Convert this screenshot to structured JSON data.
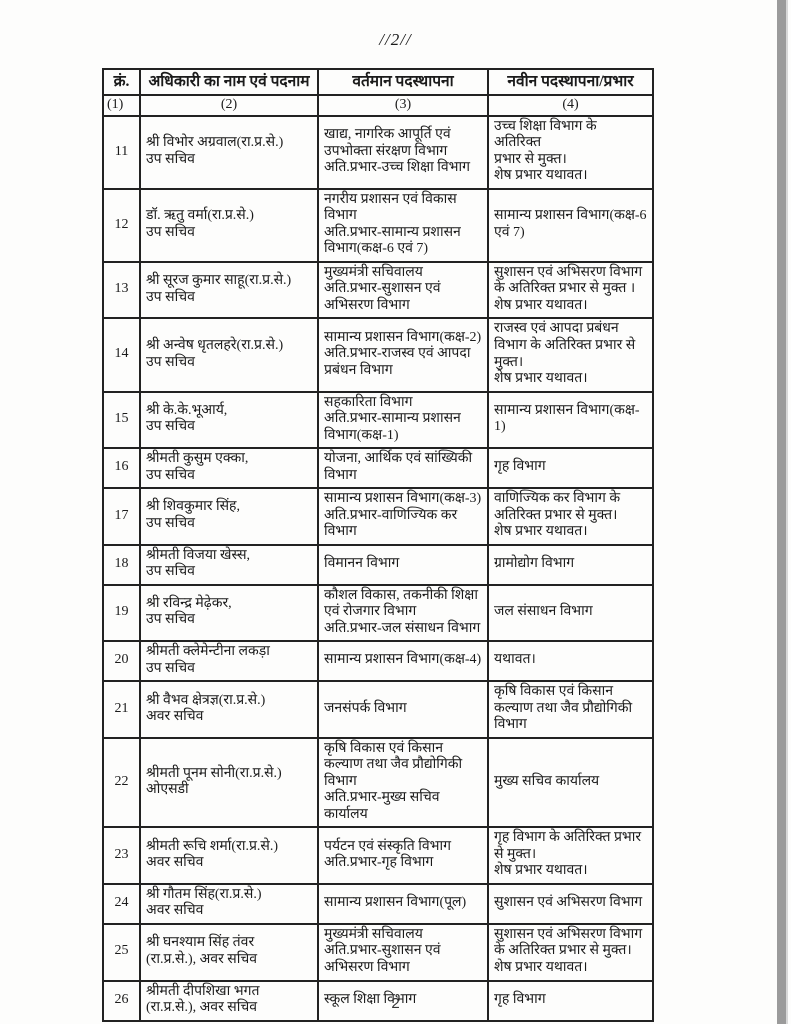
{
  "page": {
    "header_mark": "//2//",
    "page_number": "2"
  },
  "colors": {
    "page_bg": "#fdfdfc",
    "ink": "#1b1b1b",
    "table_border": "#222222",
    "scan_edge": "#9b9b9b"
  },
  "table": {
    "columns": [
      {
        "label": "क्रं.",
        "index": "(1)"
      },
      {
        "label": "अधिकारी का नाम एवं पदनाम",
        "index": "(2)"
      },
      {
        "label": "वर्तमान पदस्थापना",
        "index": "(3)"
      },
      {
        "label": "नवीन पदस्थापना/प्रभार",
        "index": "(4)"
      }
    ],
    "rows": [
      {
        "sno": "11",
        "name": "श्री विभोर अग्रवाल(रा.प्र.से.)\nउप सचिव",
        "current": "खाद्य, नागरिक आपूर्ति एवं\nउपभोक्ता संरक्षण विभाग\nअति.प्रभार-उच्च शिक्षा विभाग",
        "new": "उच्च शिक्षा विभाग के अतिरिक्त\nप्रभार से मुक्त।\nशेष प्रभार यथावत।"
      },
      {
        "sno": "12",
        "name": "डॉ. ऋतु वर्मा(रा.प्र.से.)\nउप सचिव",
        "current": "नगरीय प्रशासन एवं विकास\nविभाग\nअति.प्रभार-सामान्य प्रशासन\nविभाग(कक्ष-6 एवं 7)",
        "new": "सामान्य प्रशासन विभाग(कक्ष-6\nएवं 7)"
      },
      {
        "sno": "13",
        "name": "श्री सूरज कुमार साहू(रा.प्र.से.)\nउप सचिव",
        "current": "मुख्यमंत्री सचिवालय\nअति.प्रभार-सुशासन एवं\nअभिसरण विभाग",
        "new": "सुशासन एवं अभिसरण विभाग\nके अतिरिक्त प्रभार से मुक्त ।\nशेष प्रभार यथावत।"
      },
      {
        "sno": "14",
        "name": "श्री अन्वेष धृतलहरे(रा.प्र.से.)\nउप सचिव",
        "current": "सामान्य प्रशासन विभाग(कक्ष-2)\nअति.प्रभार-राजस्व एवं आपदा\nप्रबंधन विभाग",
        "new": "राजस्व एवं आपदा प्रबंधन\nविभाग के अतिरिक्त प्रभार से\nमुक्त।\nशेष प्रभार यथावत।"
      },
      {
        "sno": "15",
        "name": "श्री के.के.भूआर्य,\nउप सचिव",
        "current": "सहकारिता विभाग\nअति.प्रभार-सामान्य प्रशासन\nविभाग(कक्ष-1)",
        "new": "सामान्य प्रशासन विभाग(कक्ष-\n1)"
      },
      {
        "sno": "16",
        "name": "श्रीमती कुसुम एक्का,\nउप सचिव",
        "current": "योजना, आर्थिक एवं सांख्यिकी\nविभाग",
        "new": "गृह विभाग"
      },
      {
        "sno": "17",
        "name": "श्री शिवकुमार सिंह,\nउप सचिव",
        "current": "सामान्य प्रशासन विभाग(कक्ष-3)\nअति.प्रभार-वाणिज्यिक कर\nविभाग",
        "new": "वाणिज्यिक कर विभाग के\nअतिरिक्त प्रभार से मुक्त।\nशेष प्रभार यथावत।"
      },
      {
        "sno": "18",
        "name": "श्रीमती विजया खेस्स,\nउप सचिव",
        "current": "विमानन विभाग",
        "new": "ग्रामोद्योग विभाग"
      },
      {
        "sno": "19",
        "name": "श्री रविन्द्र मेढ़ेकर,\nउप सचिव",
        "current": "कौशल विकास, तकनीकी शिक्षा\nएवं रोजगार विभाग\nअति.प्रभार-जल संसाधन विभाग",
        "new": "जल संसाधन विभाग"
      },
      {
        "sno": "20",
        "name": "श्रीमती क्लेमेन्टीना लकड़ा\nउप सचिव",
        "current": "सामान्य प्रशासन विभाग(कक्ष-4)",
        "new": "यथावत।"
      },
      {
        "sno": "21",
        "name": "श्री वैभव क्षेत्रज्ञ(रा.प्र.से.)\nअवर सचिव",
        "current": "जनसंपर्क विभाग",
        "new": "कृषि विकास एवं किसान\nकल्याण तथा जैव प्रौद्योगिकी\nविभाग"
      },
      {
        "sno": "22",
        "name": "श्रीमती पूनम सोनी(रा.प्र.से.)\nओएसडी",
        "current": "कृषि विकास एवं किसान\nकल्याण तथा जैव प्रौद्योगिकी\nविभाग\nअति.प्रभार-मुख्य सचिव\nकार्यालय",
        "new": "मुख्य सचिव कार्यालय"
      },
      {
        "sno": "23",
        "name": "श्रीमती रूचि शर्मा(रा.प्र.से.)\nअवर सचिव",
        "current": "पर्यटन एवं संस्कृति विभाग\nअति.प्रभार-गृह विभाग",
        "new": "गृह विभाग के अतिरिक्त प्रभार\nसे मुक्त।\nशेष प्रभार यथावत।"
      },
      {
        "sno": "24",
        "name": "श्री गौतम सिंह(रा.प्र.से.)\nअवर सचिव",
        "current": "सामान्य प्रशासन विभाग(पूल)",
        "new": "सुशासन एवं अभिसरण विभाग"
      },
      {
        "sno": "25",
        "name": "श्री घनश्याम सिंह तंवर\n(रा.प्र.से.), अवर सचिव",
        "current": "मुख्यमंत्री सचिवालय\nअति.प्रभार-सुशासन एवं\nअभिसरण विभाग",
        "new": "सुशासन एवं अभिसरण विभाग\nके अतिरिक्त प्रभार से मुक्त।\nशेष प्रभार यथावत।"
      },
      {
        "sno": "26",
        "name": "श्रीमती दीपशिखा भगत\n(रा.प्र.से.), अवर सचिव",
        "current": "स्कूल शिक्षा विभाग",
        "new": "गृह विभाग"
      }
    ]
  }
}
